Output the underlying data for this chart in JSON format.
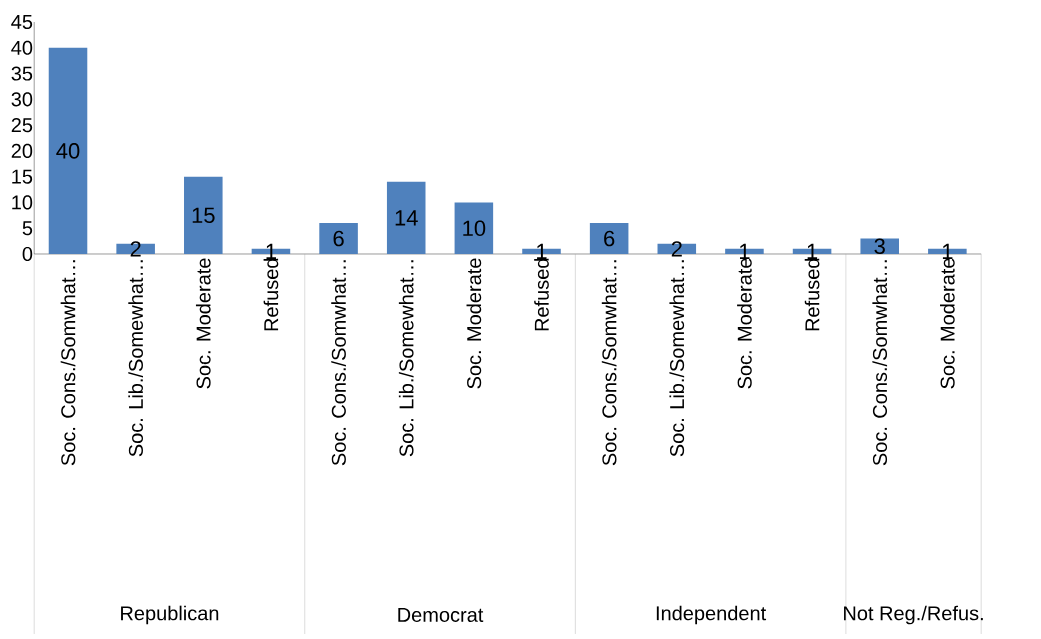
{
  "chart_data": {
    "type": "bar",
    "categories": [
      "Soc. Cons./Somwhat…",
      "Soc. Lib./Somewhat…",
      "Soc. Moderate",
      "Refused",
      "Soc. Cons./Somwhat…",
      "Soc. Lib./Somewhat…",
      "Soc. Moderate",
      "Refused",
      "Soc. Cons./Somwhat…",
      "Soc. Lib./Somewhat…",
      "Soc. Moderate",
      "Refused",
      "Soc. Cons./Somwhat…",
      "Soc. Moderate"
    ],
    "values": [
      40,
      2,
      15,
      1,
      6,
      14,
      10,
      1,
      6,
      2,
      1,
      1,
      3,
      1
    ],
    "color": "#4f81bd",
    "data_labels": true,
    "ylim": [
      0,
      45
    ],
    "yticks": [
      0,
      5,
      10,
      15,
      20,
      25,
      30,
      35,
      40,
      45
    ],
    "grid": false,
    "annotations": [
      "Republican",
      "Democrat",
      "Independent",
      "Not Reg./Refus."
    ]
  }
}
